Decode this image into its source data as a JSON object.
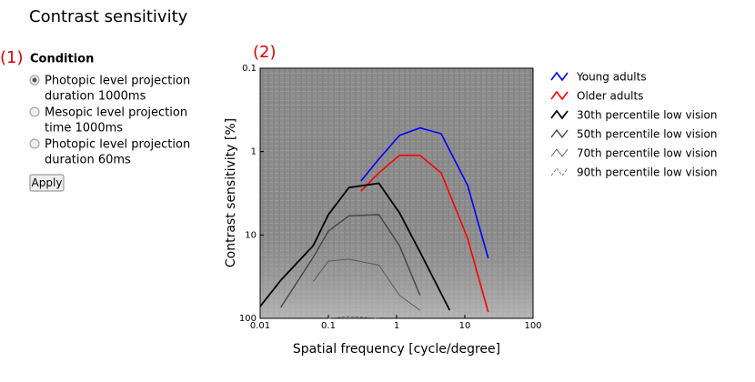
{
  "title": "Contrast sensitivity",
  "panel": {
    "marker": "(1)",
    "heading": "Condition",
    "options": [
      {
        "lines": [
          "Photopic level projection",
          "duration 1000ms"
        ],
        "selected": true
      },
      {
        "lines": [
          "Mesopic level projection",
          "time 1000ms"
        ],
        "selected": false
      },
      {
        "lines": [
          "Photopic level projection",
          "duration 60ms"
        ],
        "selected": false
      }
    ],
    "button": "Apply"
  },
  "chart_marker": "(2)",
  "chart_data": {
    "type": "line",
    "xlabel": "Spatial frequency [cycle/degree]",
    "ylabel": "Contrast sensitivity [%]",
    "xscale": "log",
    "yscale": "log",
    "y_inverted": true,
    "xlim": [
      0.01,
      100
    ],
    "ylim": [
      0.1,
      100
    ],
    "xticks": [
      0.01,
      0.1,
      1,
      10,
      100
    ],
    "yticks": [
      0.1,
      1,
      10,
      100
    ],
    "series": [
      {
        "name": "Young adults",
        "color": "#0000ff",
        "width": 1.6,
        "dashed": false,
        "x": [
          0.3,
          0.55,
          1.1,
          2.2,
          4.5,
          11,
          22
        ],
        "values": [
          2.25,
          1.23,
          0.64,
          0.52,
          0.61,
          2.55,
          19
        ]
      },
      {
        "name": "Older adults",
        "color": "#ff0000",
        "width": 1.6,
        "dashed": false,
        "x": [
          0.3,
          0.55,
          1.1,
          2.2,
          4.5,
          11,
          22
        ],
        "values": [
          2.97,
          1.8,
          1.11,
          1.11,
          1.8,
          11,
          84
        ]
      },
      {
        "name": "30th percentile low vision",
        "color": "#000000",
        "width": 1.8,
        "dashed": false,
        "x": [
          0.01,
          0.02,
          0.06,
          0.1,
          0.2,
          0.55,
          1.1,
          2.2,
          6
        ],
        "values": [
          72,
          35,
          13.4,
          5.7,
          2.7,
          2.4,
          5.4,
          16,
          80
        ]
      },
      {
        "name": "50th percentile low vision",
        "color": "#444444",
        "width": 1.4,
        "dashed": false,
        "x": [
          0.02,
          0.06,
          0.1,
          0.2,
          0.55,
          1.1,
          2.2
        ],
        "values": [
          74,
          18.5,
          9,
          5.9,
          5.7,
          13.4,
          53
        ]
      },
      {
        "name": "70th percentile low vision",
        "color": "#555555",
        "width": 0.9,
        "dashed": false,
        "x": [
          0.06,
          0.1,
          0.2,
          0.55,
          1.1,
          2.2
        ],
        "values": [
          36,
          20.6,
          19.5,
          23,
          53,
          80
        ]
      },
      {
        "name": "90th percentile low vision",
        "color": "#666666",
        "width": 0.9,
        "dashed": true,
        "x": [
          0.1,
          0.2,
          0.55
        ],
        "values": [
          100,
          95,
          100
        ]
      }
    ]
  }
}
